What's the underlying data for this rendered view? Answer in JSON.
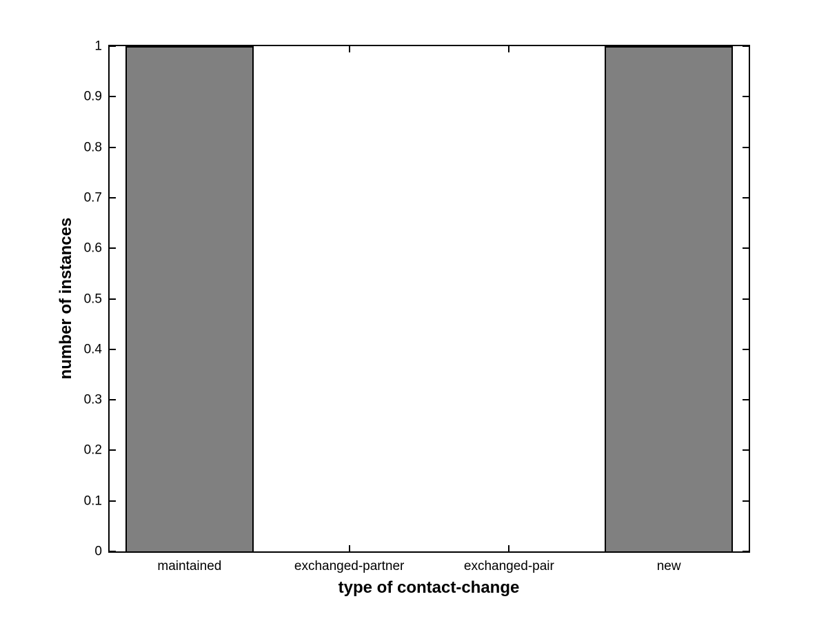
{
  "figure": {
    "background": "#ffffff"
  },
  "chart_data": {
    "type": "bar",
    "title": "",
    "xlabel": "type of contact-change",
    "ylabel": "number of instances",
    "categories": [
      "maintained",
      "exchanged-partner",
      "exchanged-pair",
      "new"
    ],
    "values": [
      1,
      0,
      0,
      1
    ],
    "ylim": [
      0,
      1
    ],
    "ytick_step": 0.1,
    "ytick_labels": [
      "0",
      "0.1",
      "0.2",
      "0.3",
      "0.4",
      "0.5",
      "0.6",
      "0.7",
      "0.8",
      "0.9",
      "1"
    ],
    "bar_color": "#808080",
    "bar_edge_color": "#000000",
    "bar_width_fraction": 0.8,
    "axis_color": "#000000",
    "grid": "off",
    "legend": "none",
    "box": "on",
    "tick_direction": "in"
  }
}
